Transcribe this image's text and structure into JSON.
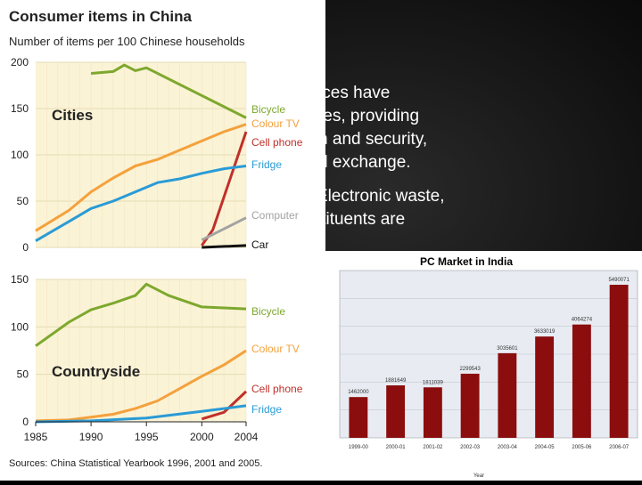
{
  "slide_text": {
    "paragraph1": [
      "appliances have",
      "daily lives, providing",
      "t, health and security,",
      "tion and exchange."
    ],
    "paragraph2": [
      "wn as Electronic waste,",
      "ts constituents are"
    ]
  },
  "chart_data": [
    {
      "type": "line",
      "title": "Consumer items in China",
      "subtitle": "Number of items per 100 Chinese households",
      "source": "Sources: China Statistical Yearbook 1996, 2001 and 2005.",
      "panels": [
        {
          "name": "Cities",
          "ylim": [
            0,
            200
          ],
          "yticks": [
            "0",
            "50",
            "100",
            "150",
            "200"
          ],
          "xlim": [
            1985,
            2004
          ],
          "series": [
            {
              "name": "Bicycle",
              "color": "#7da82d",
              "x": [
                1990,
                1992,
                1993,
                1994,
                1995,
                2004
              ],
              "y": [
                188,
                190,
                197,
                191,
                194,
                140
              ]
            },
            {
              "name": "Colour TV",
              "color": "#f4a13c",
              "x": [
                1985,
                1988,
                1990,
                1992,
                1994,
                1996,
                1998,
                2000,
                2002,
                2004
              ],
              "y": [
                18,
                40,
                60,
                75,
                88,
                95,
                105,
                115,
                125,
                133
              ]
            },
            {
              "name": "Cell phone",
              "color": "#c0302a",
              "x": [
                2000,
                2001,
                2004
              ],
              "y": [
                2,
                19,
                125
              ]
            },
            {
              "name": "Fridge",
              "color": "#2a9bd6",
              "x": [
                1985,
                1988,
                1990,
                1992,
                1994,
                1996,
                1998,
                2000,
                2002,
                2004
              ],
              "y": [
                7,
                28,
                42,
                50,
                60,
                70,
                74,
                80,
                85,
                88
              ]
            },
            {
              "name": "Computer",
              "color": "#a3a3a3",
              "x": [
                2000,
                2002,
                2004
              ],
              "y": [
                8,
                20,
                32
              ]
            },
            {
              "name": "Car",
              "color": "#111111",
              "x": [
                2000,
                2004
              ],
              "y": [
                0,
                2
              ]
            }
          ]
        },
        {
          "name": "Countryside",
          "ylim": [
            0,
            150
          ],
          "yticks": [
            "0",
            "50",
            "100",
            "150"
          ],
          "xlim": [
            1985,
            2004
          ],
          "xticks": [
            "1985",
            "1990",
            "1995",
            "2000",
            "2004"
          ],
          "series": [
            {
              "name": "Bicycle",
              "color": "#7da82d",
              "x": [
                1985,
                1988,
                1990,
                1992,
                1994,
                1995,
                1997,
                2000,
                2002,
                2004
              ],
              "y": [
                80,
                105,
                118,
                125,
                133,
                145,
                133,
                121,
                120,
                119
              ]
            },
            {
              "name": "Colour TV",
              "color": "#f4a13c",
              "x": [
                1985,
                1988,
                1990,
                1992,
                1994,
                1996,
                1998,
                2000,
                2002,
                2004
              ],
              "y": [
                1,
                2,
                5,
                8,
                14,
                22,
                35,
                48,
                60,
                75
              ]
            },
            {
              "name": "Cell phone",
              "color": "#c0302a",
              "x": [
                2000,
                2002,
                2004
              ],
              "y": [
                3,
                10,
                32
              ]
            },
            {
              "name": "Fridge",
              "color": "#2a9bd6",
              "x": [
                1985,
                1990,
                1995,
                2000,
                2004
              ],
              "y": [
                0,
                1,
                4,
                11,
                17
              ]
            }
          ]
        }
      ]
    },
    {
      "type": "bar",
      "title": "PC Market in India",
      "xlabel": "Year",
      "categories": [
        "1999-00",
        "2000-01",
        "2001-02",
        "2002-03",
        "2003-04",
        "2004-05",
        "2005-06",
        "2006-07"
      ],
      "values": [
        1462000,
        1881649,
        1811039,
        2299543,
        3035601,
        3633019,
        4064274,
        5490071
      ],
      "value_labels": [
        "1462000",
        "1881649",
        "1811039",
        "2299543",
        "3035601",
        "3633019",
        "4064274",
        "5490071"
      ],
      "ylim": [
        0,
        6000000
      ],
      "bar_color": "#8b0d0d",
      "grid": true
    }
  ]
}
